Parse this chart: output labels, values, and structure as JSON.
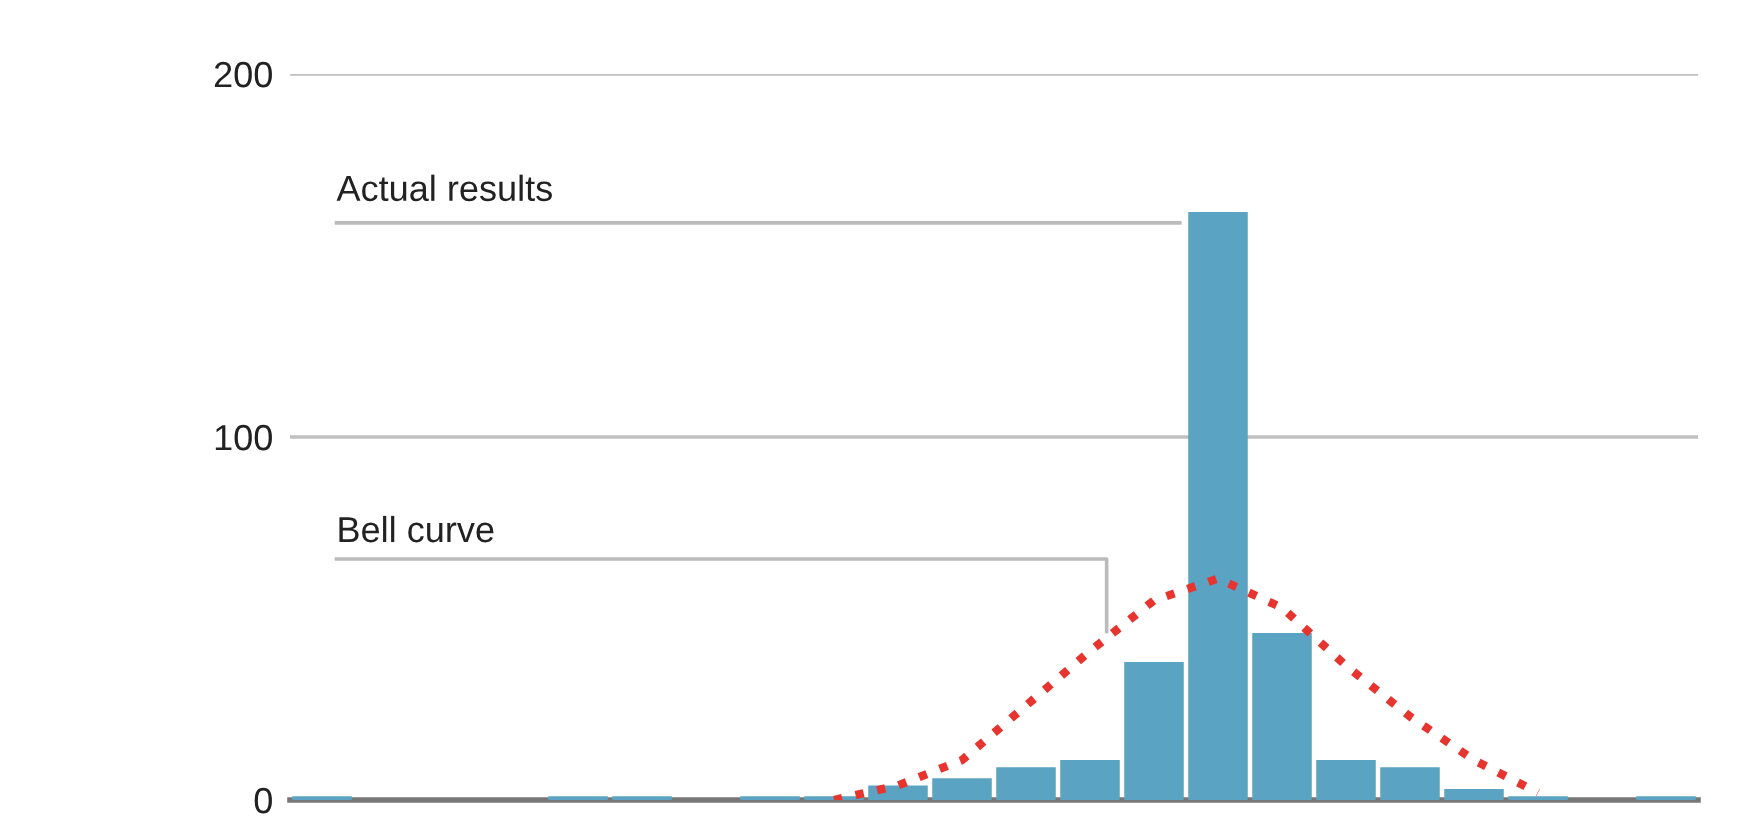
{
  "chart_data": {
    "type": "bar",
    "categories": [
      null,
      null,
      null,
      null,
      null,
      null,
      null,
      null,
      null,
      null,
      null,
      null,
      null,
      null,
      null,
      null,
      null,
      null,
      null,
      null,
      null,
      null
    ],
    "series": [
      {
        "color": "#5aa3c3",
        "values": [
          1,
          0,
          0,
          0,
          1,
          1,
          0,
          1,
          1,
          4,
          6,
          9,
          11,
          38,
          162,
          46,
          11,
          9,
          3,
          1,
          0,
          1
        ]
      },
      {
        "type": "line",
        "color": "#e8342e",
        "line_style": "dotted",
        "values": [
          null,
          null,
          null,
          null,
          null,
          null,
          null,
          null,
          0,
          4,
          11,
          26,
          41,
          55,
          61,
          53,
          37,
          23,
          11,
          2,
          null,
          null
        ]
      }
    ],
    "ylim": [
      0,
      200
    ],
    "yticks": [
      0,
      100,
      200
    ],
    "grid": "y",
    "tick_labels": "y",
    "annotations": [
      "Actual results",
      "Bell curve"
    ]
  }
}
